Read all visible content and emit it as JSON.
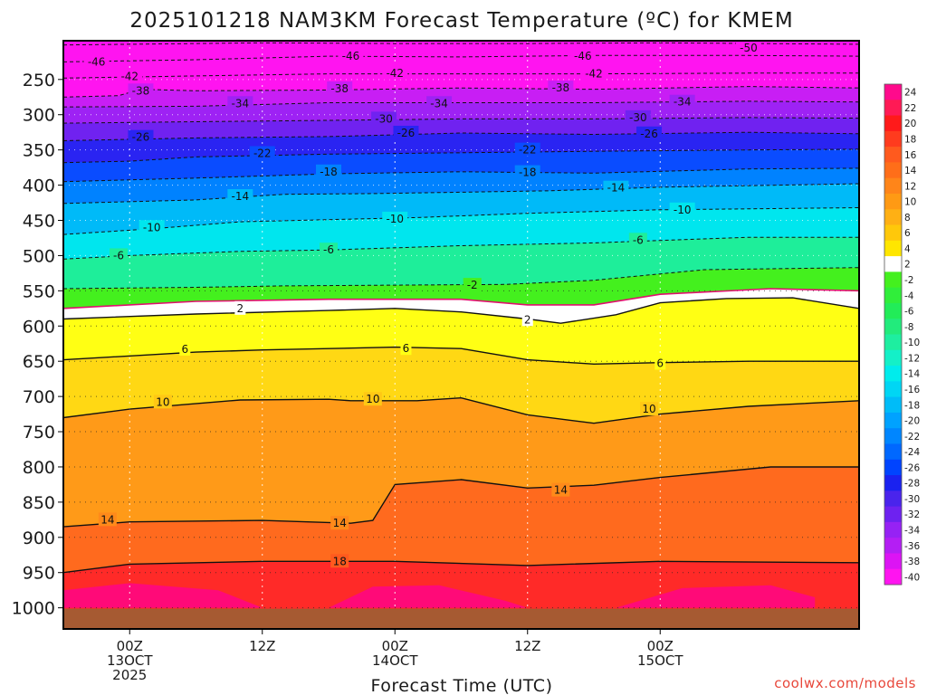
{
  "chart_data": {
    "type": "heatmap",
    "title": "2025101218 NAM3KM Forecast Temperature (ºC) for KMEM",
    "xlabel": "Forecast Time (UTC)",
    "ylabel": "",
    "x_hours": [
      -6,
      66
    ],
    "p_range": [
      195,
      1030
    ],
    "y_ticks": [
      {
        "label": "250",
        "value": 250
      },
      {
        "label": "300",
        "value": 300
      },
      {
        "label": "350",
        "value": 350
      },
      {
        "label": "400",
        "value": 400
      },
      {
        "label": "450",
        "value": 450
      },
      {
        "label": "500",
        "value": 500
      },
      {
        "label": "550",
        "value": 550
      },
      {
        "label": "600",
        "value": 600
      },
      {
        "label": "650",
        "value": 650
      },
      {
        "label": "700",
        "value": 700
      },
      {
        "label": "750",
        "value": 750
      },
      {
        "label": "800",
        "value": 800
      },
      {
        "label": "850",
        "value": 850
      },
      {
        "label": "900",
        "value": 900
      },
      {
        "label": "950",
        "value": 950
      },
      {
        "label": "1000",
        "value": 1000
      }
    ],
    "x_ticks": [
      {
        "hour": 0,
        "lines": [
          "00Z",
          "13OCT",
          "2025"
        ]
      },
      {
        "hour": 12,
        "lines": [
          "12Z"
        ]
      },
      {
        "hour": 24,
        "lines": [
          "00Z",
          "14OCT"
        ]
      },
      {
        "hour": 36,
        "lines": [
          "12Z"
        ]
      },
      {
        "hour": 48,
        "lines": [
          "00Z",
          "15OCT"
        ]
      }
    ],
    "colorbar_levels": [
      "24",
      "22",
      "20",
      "18",
      "16",
      "14",
      "12",
      "10",
      "8",
      "6",
      "4",
      "2",
      "-2",
      "-4",
      "-6",
      "-8",
      "-10",
      "-12",
      "-14",
      "-16",
      "-18",
      "-20",
      "-22",
      "-24",
      "-26",
      "-28",
      "-30",
      "-32",
      "-34",
      "-36",
      "-38",
      "-40"
    ],
    "colorbar_colors": [
      "#ff0a8c",
      "#ff1a55",
      "#ff1a1a",
      "#ff3b1e",
      "#ff5a1e",
      "#ff6e19",
      "#ff8519",
      "#ff9a14",
      "#ffb014",
      "#ffc80a",
      "#ffe600",
      "#ffffff",
      "#44f01e",
      "#30ee3a",
      "#22ec58",
      "#22eb7c",
      "#1eeea0",
      "#14f0c8",
      "#00ecec",
      "#00d6f4",
      "#00bcf8",
      "#00a2ff",
      "#0086ff",
      "#0068ff",
      "#0044ff",
      "#1a22f0",
      "#4a24ec",
      "#6e22f0",
      "#9622f4",
      "#b41ef4",
      "#dc14f4",
      "#ff14f0"
    ],
    "contours": [
      {
        "value": -50,
        "label": "-50",
        "dashed": true,
        "pts": [
          [
            -6,
            201
          ],
          [
            12,
            198
          ],
          [
            24,
            199
          ],
          [
            36,
            199
          ],
          [
            48,
            198
          ],
          [
            66,
            200
          ]
        ],
        "labels": [
          [
            56,
            205
          ]
        ]
      },
      {
        "value": -46,
        "label": "-46",
        "dashed": true,
        "pts": [
          [
            -6,
            225
          ],
          [
            6,
            222
          ],
          [
            18,
            217
          ],
          [
            30,
            218
          ],
          [
            42,
            216
          ],
          [
            56,
            216
          ],
          [
            66,
            217
          ]
        ],
        "labels": [
          [
            -3,
            225
          ],
          [
            20,
            217
          ],
          [
            41,
            217
          ]
        ]
      },
      {
        "value": -42,
        "label": "-42",
        "dashed": true,
        "pts": [
          [
            -6,
            248
          ],
          [
            6,
            245
          ],
          [
            18,
            242
          ],
          [
            30,
            242
          ],
          [
            42,
            242
          ],
          [
            56,
            241
          ],
          [
            66,
            241
          ]
        ],
        "labels": [
          [
            0,
            246
          ],
          [
            24,
            241
          ],
          [
            42,
            242
          ]
        ]
      },
      {
        "value": -38,
        "label": "-38",
        "dashed": true,
        "pts": [
          [
            -6,
            275
          ],
          [
            -1,
            273
          ],
          [
            1,
            264
          ],
          [
            6,
            266
          ],
          [
            18,
            265
          ],
          [
            30,
            262
          ],
          [
            42,
            264
          ],
          [
            56,
            260
          ],
          [
            66,
            262
          ]
        ],
        "labels": [
          [
            1,
            266
          ],
          [
            19,
            263
          ],
          [
            39,
            262
          ]
        ]
      },
      {
        "value": -34,
        "label": "-34",
        "dashed": true,
        "pts": [
          [
            -6,
            289
          ],
          [
            6,
            288
          ],
          [
            18,
            283
          ],
          [
            30,
            283
          ],
          [
            42,
            283
          ],
          [
            56,
            281
          ],
          [
            66,
            282
          ]
        ],
        "labels": [
          [
            10,
            284
          ],
          [
            28,
            284
          ],
          [
            50,
            282
          ]
        ]
      },
      {
        "value": -30,
        "label": "-30",
        "dashed": true,
        "pts": [
          [
            -6,
            312
          ],
          [
            6,
            310
          ],
          [
            18,
            308
          ],
          [
            30,
            306
          ],
          [
            42,
            306
          ],
          [
            56,
            304
          ],
          [
            66,
            305
          ]
        ],
        "labels": [
          [
            23,
            306
          ],
          [
            46,
            304
          ]
        ]
      },
      {
        "value": -26,
        "label": "-26",
        "dashed": true,
        "pts": [
          [
            -6,
            337
          ],
          [
            6,
            333
          ],
          [
            18,
            331
          ],
          [
            30,
            326
          ],
          [
            42,
            328
          ],
          [
            56,
            325
          ],
          [
            66,
            327
          ]
        ],
        "labels": [
          [
            1,
            332
          ],
          [
            25,
            326
          ],
          [
            47,
            327
          ]
        ]
      },
      {
        "value": -22,
        "label": "-22",
        "dashed": true,
        "pts": [
          [
            -6,
            368
          ],
          [
            0,
            366
          ],
          [
            6,
            360
          ],
          [
            18,
            356
          ],
          [
            30,
            354
          ],
          [
            42,
            352
          ],
          [
            56,
            350
          ],
          [
            66,
            349
          ]
        ],
        "labels": [
          [
            12,
            355
          ],
          [
            36,
            350
          ]
        ]
      },
      {
        "value": -18,
        "label": "-18",
        "dashed": true,
        "pts": [
          [
            -6,
            395
          ],
          [
            6,
            390
          ],
          [
            18,
            384
          ],
          [
            30,
            381
          ],
          [
            42,
            383
          ],
          [
            56,
            377
          ],
          [
            66,
            376
          ]
        ],
        "labels": [
          [
            18,
            381
          ],
          [
            36,
            382
          ]
        ]
      },
      {
        "value": -14,
        "label": "-14",
        "dashed": true,
        "pts": [
          [
            -6,
            426
          ],
          [
            6,
            421
          ],
          [
            14,
            413
          ],
          [
            22,
            412
          ],
          [
            30,
            410
          ],
          [
            38,
            408
          ],
          [
            48,
            403
          ],
          [
            66,
            398
          ]
        ],
        "labels": [
          [
            10,
            416
          ],
          [
            44,
            404
          ]
        ]
      },
      {
        "value": -10,
        "label": "-10",
        "dashed": true,
        "pts": [
          [
            -6,
            470
          ],
          [
            2,
            462
          ],
          [
            10,
            452
          ],
          [
            18,
            449
          ],
          [
            26,
            446
          ],
          [
            36,
            440
          ],
          [
            48,
            435
          ],
          [
            66,
            432
          ]
        ],
        "labels": [
          [
            2,
            460
          ],
          [
            24,
            448
          ],
          [
            50,
            435
          ]
        ]
      },
      {
        "value": -6,
        "label": "-6",
        "dashed": true,
        "pts": [
          [
            -6,
            505
          ],
          [
            0,
            500
          ],
          [
            10,
            494
          ],
          [
            18,
            492
          ],
          [
            30,
            486
          ],
          [
            42,
            482
          ],
          [
            56,
            474
          ],
          [
            66,
            474
          ]
        ],
        "labels": [
          [
            -1,
            500
          ],
          [
            18,
            492
          ],
          [
            46,
            478
          ]
        ]
      },
      {
        "value": -2,
        "label": "-2",
        "dashed": true,
        "pts": [
          [
            -6,
            547
          ],
          [
            6,
            545
          ],
          [
            14,
            543
          ],
          [
            24,
            542
          ],
          [
            34,
            541
          ],
          [
            42,
            535
          ],
          [
            52,
            520
          ],
          [
            66,
            517
          ]
        ],
        "labels": [
          [
            31,
            542
          ]
        ]
      },
      {
        "value": 2,
        "label": "2",
        "dashed": false,
        "pts": [
          [
            -6,
            590
          ],
          [
            6,
            583
          ],
          [
            18,
            578
          ],
          [
            24,
            575
          ],
          [
            30,
            580
          ],
          [
            36,
            590
          ],
          [
            39,
            596
          ],
          [
            44,
            584
          ],
          [
            48,
            567
          ],
          [
            54,
            561
          ],
          [
            60,
            560
          ],
          [
            66,
            575
          ]
        ],
        "labels": [
          [
            10,
            575
          ],
          [
            36,
            591
          ]
        ]
      },
      {
        "value": 6,
        "label": "6",
        "dashed": false,
        "pts": [
          [
            -6,
            648
          ],
          [
            6,
            637
          ],
          [
            12,
            634
          ],
          [
            18,
            632
          ],
          [
            24,
            630
          ],
          [
            30,
            632
          ],
          [
            36,
            648
          ],
          [
            42,
            654
          ],
          [
            48,
            652
          ],
          [
            56,
            650
          ],
          [
            66,
            650
          ]
        ],
        "labels": [
          [
            5,
            633
          ],
          [
            25,
            632
          ],
          [
            48,
            653
          ]
        ]
      },
      {
        "value": 10,
        "label": "10",
        "dashed": false,
        "pts": [
          [
            -6,
            730
          ],
          [
            0,
            718
          ],
          [
            10,
            705
          ],
          [
            18,
            704
          ],
          [
            20,
            706
          ],
          [
            26,
            706
          ],
          [
            30,
            702
          ],
          [
            36,
            726
          ],
          [
            42,
            738
          ],
          [
            48,
            725
          ],
          [
            56,
            714
          ],
          [
            66,
            706
          ]
        ],
        "labels": [
          [
            3,
            708
          ],
          [
            22,
            704
          ],
          [
            47,
            718
          ]
        ]
      },
      {
        "value": 14,
        "label": "14",
        "dashed": false,
        "pts": [
          [
            -6,
            885
          ],
          [
            0,
            878
          ],
          [
            12,
            876
          ],
          [
            20,
            880
          ],
          [
            22,
            876
          ],
          [
            24,
            825
          ],
          [
            30,
            818
          ],
          [
            36,
            830
          ],
          [
            42,
            826
          ],
          [
            48,
            815
          ],
          [
            58,
            800
          ],
          [
            66,
            800
          ]
        ],
        "labels": [
          [
            -2,
            875
          ],
          [
            19,
            880
          ],
          [
            39,
            833
          ]
        ]
      },
      {
        "value": 18,
        "label": "18",
        "dashed": false,
        "pts": [
          [
            -6,
            950
          ],
          [
            0,
            938
          ],
          [
            12,
            934
          ],
          [
            24,
            934
          ],
          [
            36,
            940
          ],
          [
            48,
            934
          ],
          [
            66,
            936
          ]
        ],
        "labels": [
          [
            19,
            934
          ]
        ]
      }
    ],
    "line_0c": [
      [
        -6,
        575
      ],
      [
        6,
        565
      ],
      [
        18,
        562
      ],
      [
        30,
        562
      ],
      [
        36,
        570
      ],
      [
        42,
        570
      ],
      [
        48,
        555
      ],
      [
        58,
        547
      ],
      [
        66,
        550
      ]
    ],
    "bands": [
      {
        "color": "#ff14f0",
        "pts": [
          [
            -6,
            195
          ],
          [
            66,
            195
          ],
          [
            66,
            268
          ],
          [
            42,
            268
          ],
          [
            18,
            270
          ],
          [
            6,
            270
          ],
          [
            -1,
            278
          ],
          [
            -6,
            282
          ]
        ]
      }
    ],
    "ground": {
      "color": "#a65a32",
      "label": "ground"
    },
    "watermark": "coolwx.com/models"
  }
}
